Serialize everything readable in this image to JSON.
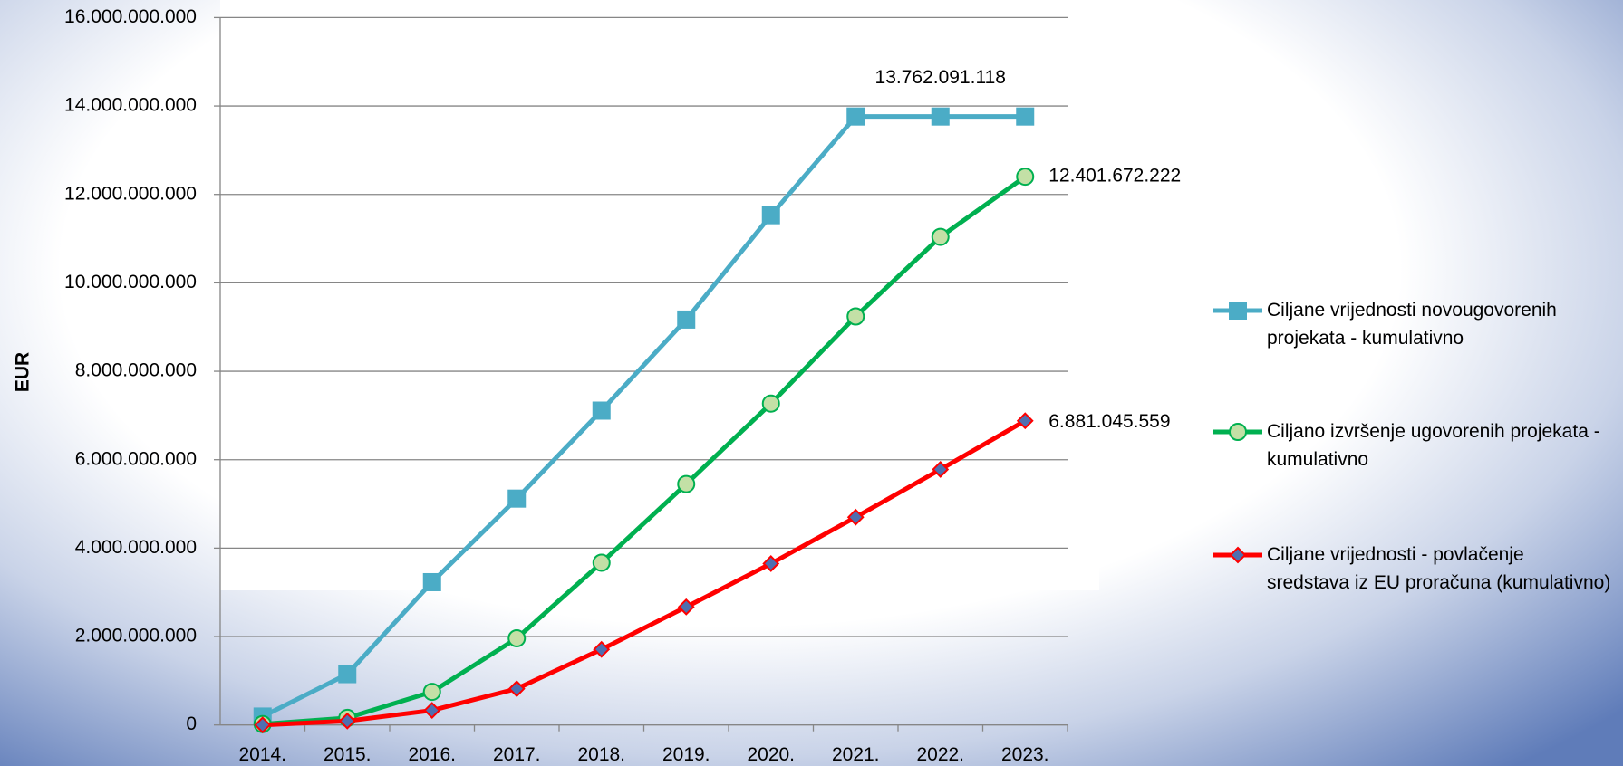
{
  "chart_data": {
    "type": "line",
    "ylabel": "EUR",
    "categories": [
      "2014.",
      "2015.",
      "2016.",
      "2017.",
      "2018.",
      "2019.",
      "2020.",
      "2021.",
      "2022.",
      "2023."
    ],
    "series": [
      {
        "name": "Ciljane vrijednosti novougovorenih projekata - kumulativno",
        "color": "#4bacc6",
        "marker": "square",
        "values": [
          190000000,
          1150000000,
          3230000000,
          5120000000,
          7110000000,
          9170000000,
          11530000000,
          13762091118,
          13762091118,
          13762091118
        ],
        "value_labels": [
          null,
          null,
          null,
          null,
          null,
          null,
          null,
          null,
          "13.762.091.118",
          null
        ]
      },
      {
        "name": "Ciljano izvršenje ugovorenih projekata - kumulativno",
        "color": "#00b050",
        "marker": "circle",
        "values": [
          20000000,
          160000000,
          750000000,
          1960000000,
          3670000000,
          5450000000,
          7270000000,
          9240000000,
          11040000000,
          12401672222
        ],
        "value_labels": [
          null,
          null,
          null,
          null,
          null,
          null,
          null,
          null,
          null,
          "12.401.672.222"
        ]
      },
      {
        "name": "Ciljane vrijednosti - povlačenje sredstava iz EU proračuna (kumulativno)",
        "color": "#ff0000",
        "marker": "diamond",
        "values": [
          0,
          90000000,
          330000000,
          820000000,
          1710000000,
          2670000000,
          3650000000,
          4700000000,
          5780000000,
          6881045559
        ],
        "value_labels": [
          null,
          null,
          null,
          null,
          null,
          null,
          null,
          null,
          null,
          "6.881.045.559"
        ]
      }
    ],
    "ylim": [
      0,
      16000000000
    ],
    "yticks": [
      0,
      {
        "value": 2000000000,
        "label": "2.000.000.000"
      },
      {
        "value": 4000000000,
        "label": "4.000.000.000"
      },
      {
        "value": 6000000000,
        "label": "6.000.000.000"
      },
      {
        "value": 8000000000,
        "label": "8.000.000.000"
      },
      {
        "value": 10000000000,
        "label": "10.000.000.000"
      },
      {
        "value": 12000000000,
        "label": "12.000.000.000"
      },
      {
        "value": 14000000000,
        "label": "14.000.000.000"
      },
      {
        "value": 16000000000,
        "label": "16.000.000.000"
      }
    ],
    "grid": true,
    "legend": "right"
  }
}
